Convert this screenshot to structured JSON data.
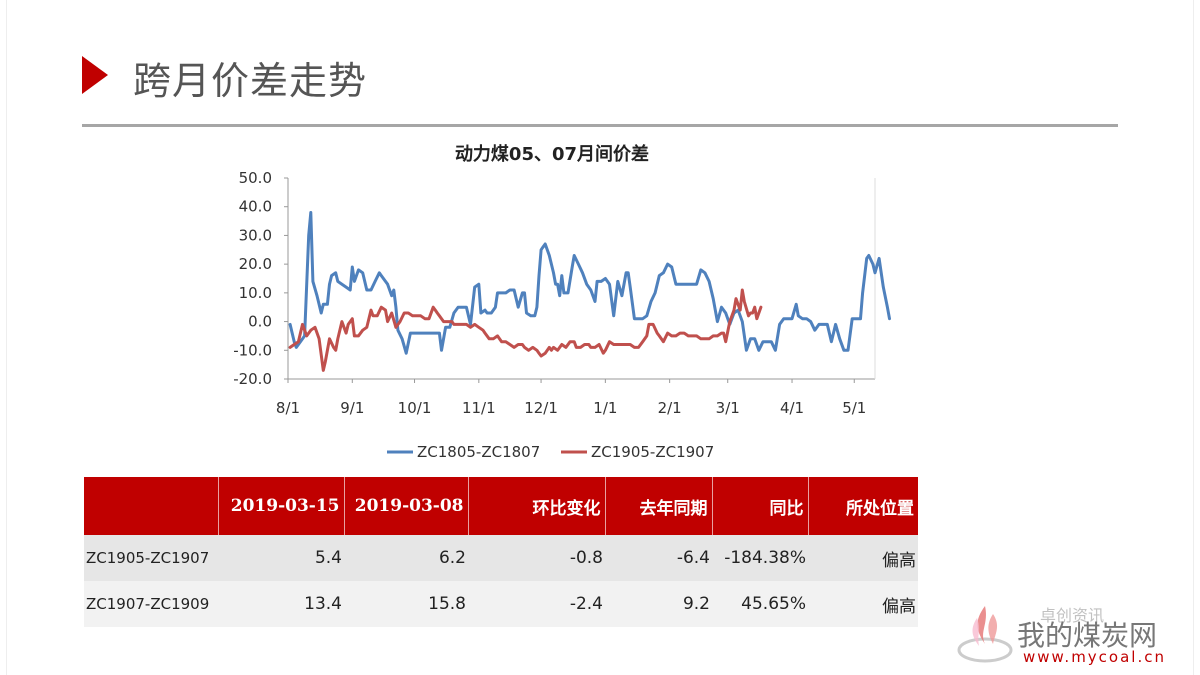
{
  "page": {
    "title": "跨月价差走势"
  },
  "chart_data": {
    "type": "line",
    "title": "动力煤05、07月间价差",
    "xlabel": "",
    "ylabel": "",
    "ylim": [
      -20,
      50
    ],
    "yticks": [
      "50.0",
      "40.0",
      "30.0",
      "20.0",
      "10.0",
      "0.0",
      "-10.0",
      "-20.0"
    ],
    "x_ticks": [
      "8/1",
      "9/1",
      "10/1",
      "11/1",
      "12/1",
      "1/1",
      "2/1",
      "3/1",
      "4/1",
      "5/1"
    ],
    "x_domain": [
      0,
      283
    ],
    "x_tick_days": [
      0,
      31,
      61,
      92,
      122,
      153,
      184,
      212,
      243,
      273
    ],
    "grid": false,
    "legend_position": "bottom",
    "series": [
      {
        "name": "ZC1805-ZC1807",
        "color": "#4f81bd",
        "points": [
          [
            1,
            -1
          ],
          [
            3,
            -7
          ],
          [
            4,
            -9
          ],
          [
            6,
            -7
          ],
          [
            8,
            -5
          ],
          [
            10,
            30
          ],
          [
            11,
            38
          ],
          [
            12,
            14
          ],
          [
            14,
            9
          ],
          [
            16,
            3
          ],
          [
            17,
            6
          ],
          [
            19,
            6
          ],
          [
            20,
            13
          ],
          [
            21,
            16
          ],
          [
            23,
            17
          ],
          [
            24,
            14
          ],
          [
            26,
            13
          ],
          [
            28,
            12
          ],
          [
            30,
            11
          ],
          [
            31,
            19
          ],
          [
            32,
            14
          ],
          [
            34,
            18
          ],
          [
            36,
            17
          ],
          [
            38,
            11
          ],
          [
            40,
            11
          ],
          [
            42,
            14
          ],
          [
            44,
            17
          ],
          [
            45,
            16
          ],
          [
            47,
            14
          ],
          [
            48,
            13
          ],
          [
            50,
            9
          ],
          [
            51,
            11
          ],
          [
            52,
            5
          ],
          [
            53,
            -3
          ],
          [
            55,
            -6
          ],
          [
            57,
            -11
          ],
          [
            59,
            -4
          ],
          [
            61,
            -4
          ],
          [
            63,
            -4
          ],
          [
            65,
            -4
          ],
          [
            67,
            -4
          ],
          [
            69,
            -4
          ],
          [
            71,
            -4
          ],
          [
            73,
            -4
          ],
          [
            74,
            -10
          ],
          [
            76,
            -2
          ],
          [
            78,
            -2
          ],
          [
            80,
            3
          ],
          [
            82,
            5
          ],
          [
            84,
            5
          ],
          [
            86,
            5
          ],
          [
            88,
            -1
          ],
          [
            90,
            12
          ],
          [
            92,
            13
          ],
          [
            93,
            3
          ],
          [
            95,
            4
          ],
          [
            96,
            3
          ],
          [
            98,
            3
          ],
          [
            100,
            5
          ],
          [
            101,
            10
          ],
          [
            103,
            10
          ],
          [
            105,
            10
          ],
          [
            107,
            11
          ],
          [
            108,
            11
          ],
          [
            109,
            11
          ],
          [
            111,
            5
          ],
          [
            113,
            10
          ],
          [
            114,
            10
          ],
          [
            115,
            3
          ],
          [
            117,
            2
          ],
          [
            119,
            2
          ],
          [
            120,
            5
          ],
          [
            121,
            16
          ],
          [
            122,
            25
          ],
          [
            123,
            26
          ],
          [
            124,
            27
          ],
          [
            126,
            23
          ],
          [
            128,
            17
          ],
          [
            129,
            13
          ],
          [
            130,
            13
          ],
          [
            131,
            9
          ],
          [
            132,
            16
          ],
          [
            133,
            10
          ],
          [
            135,
            10
          ],
          [
            137,
            19
          ],
          [
            138,
            23
          ],
          [
            140,
            20
          ],
          [
            142,
            17
          ],
          [
            144,
            13
          ],
          [
            146,
            11
          ],
          [
            148,
            7
          ],
          [
            149,
            14
          ],
          [
            151,
            14
          ],
          [
            153,
            15
          ],
          [
            155,
            13
          ],
          [
            157,
            2
          ],
          [
            159,
            14
          ],
          [
            161,
            9
          ],
          [
            163,
            17
          ],
          [
            164,
            17
          ],
          [
            165,
            12
          ],
          [
            167,
            1
          ],
          [
            169,
            1
          ],
          [
            171,
            1
          ],
          [
            173,
            2
          ],
          [
            175,
            7
          ],
          [
            177,
            10
          ],
          [
            179,
            16
          ],
          [
            181,
            17
          ],
          [
            183,
            20
          ],
          [
            185,
            19
          ],
          [
            187,
            13
          ],
          [
            189,
            13
          ],
          [
            191,
            13
          ],
          [
            193,
            13
          ],
          [
            195,
            13
          ],
          [
            197,
            13
          ],
          [
            199,
            18
          ],
          [
            201,
            17
          ],
          [
            203,
            14
          ],
          [
            205,
            8
          ],
          [
            207,
            0
          ],
          [
            209,
            5
          ],
          [
            211,
            3
          ],
          [
            213,
            -1
          ],
          [
            215,
            3
          ],
          [
            217,
            4
          ],
          [
            219,
            0
          ],
          [
            221,
            -10
          ],
          [
            223,
            -6
          ],
          [
            225,
            -6
          ],
          [
            227,
            -10
          ],
          [
            229,
            -7
          ],
          [
            231,
            -7
          ],
          [
            233,
            -7
          ],
          [
            235,
            -10
          ],
          [
            237,
            -1
          ],
          [
            239,
            1
          ],
          [
            241,
            1
          ],
          [
            243,
            1
          ],
          [
            245,
            6
          ],
          [
            246,
            2
          ],
          [
            248,
            1
          ],
          [
            250,
            1
          ],
          [
            252,
            0
          ],
          [
            254,
            -3
          ],
          [
            256,
            -1
          ],
          [
            258,
            -1
          ],
          [
            260,
            -1
          ],
          [
            262,
            -7
          ],
          [
            264,
            -1
          ],
          [
            266,
            -6
          ],
          [
            268,
            -10
          ],
          [
            270,
            -10
          ],
          [
            272,
            1
          ],
          [
            274,
            1
          ],
          [
            276,
            1
          ],
          [
            277,
            10
          ],
          [
            279,
            22
          ],
          [
            280,
            23
          ],
          [
            282,
            20
          ],
          [
            283,
            17
          ],
          [
            285,
            22
          ],
          [
            287,
            12
          ],
          [
            289,
            5
          ],
          [
            290,
            1
          ]
        ]
      },
      {
        "name": "ZC1905-ZC1907",
        "color": "#c0504d",
        "points": [
          [
            1,
            -9
          ],
          [
            3,
            -8
          ],
          [
            5,
            -7
          ],
          [
            7,
            -1
          ],
          [
            9,
            -5
          ],
          [
            11,
            -3
          ],
          [
            13,
            -2
          ],
          [
            15,
            -6
          ],
          [
            17,
            -17
          ],
          [
            18,
            -14
          ],
          [
            20,
            -6
          ],
          [
            22,
            -9
          ],
          [
            23,
            -10
          ],
          [
            24,
            -6
          ],
          [
            26,
            0
          ],
          [
            27,
            -2
          ],
          [
            28,
            -4
          ],
          [
            29,
            -1
          ],
          [
            31,
            1
          ],
          [
            32,
            -5
          ],
          [
            34,
            -5
          ],
          [
            36,
            -3
          ],
          [
            38,
            -2
          ],
          [
            40,
            4
          ],
          [
            41,
            2
          ],
          [
            43,
            2
          ],
          [
            45,
            5
          ],
          [
            47,
            4
          ],
          [
            48,
            0
          ],
          [
            50,
            3
          ],
          [
            52,
            -2
          ],
          [
            54,
            0
          ],
          [
            56,
            3
          ],
          [
            58,
            3
          ],
          [
            60,
            2
          ],
          [
            62,
            2
          ],
          [
            64,
            2
          ],
          [
            66,
            1
          ],
          [
            68,
            1
          ],
          [
            70,
            5
          ],
          [
            71,
            4
          ],
          [
            72,
            3
          ],
          [
            73,
            2
          ],
          [
            75,
            0
          ],
          [
            77,
            0
          ],
          [
            79,
            0
          ],
          [
            80,
            -1
          ],
          [
            82,
            -1
          ],
          [
            84,
            -1
          ],
          [
            86,
            -1
          ],
          [
            88,
            -2
          ],
          [
            90,
            -1
          ],
          [
            92,
            -2
          ],
          [
            94,
            -3
          ],
          [
            95,
            -4
          ],
          [
            97,
            -6
          ],
          [
            99,
            -6
          ],
          [
            101,
            -5
          ],
          [
            103,
            -7
          ],
          [
            105,
            -7
          ],
          [
            107,
            -8
          ],
          [
            109,
            -9
          ],
          [
            111,
            -8
          ],
          [
            113,
            -8
          ],
          [
            114,
            -9
          ],
          [
            116,
            -10
          ],
          [
            118,
            -9
          ],
          [
            120,
            -10
          ],
          [
            121,
            -11
          ],
          [
            122,
            -12
          ],
          [
            124,
            -11
          ],
          [
            126,
            -9
          ],
          [
            127,
            -10
          ],
          [
            128,
            -9
          ],
          [
            130,
            -10
          ],
          [
            132,
            -8
          ],
          [
            134,
            -9
          ],
          [
            136,
            -7
          ],
          [
            138,
            -7
          ],
          [
            139,
            -9
          ],
          [
            141,
            -9
          ],
          [
            143,
            -8
          ],
          [
            145,
            -8
          ],
          [
            146,
            -9
          ],
          [
            148,
            -9
          ],
          [
            150,
            -8
          ],
          [
            152,
            -11
          ],
          [
            153,
            -10
          ],
          [
            155,
            -7
          ],
          [
            157,
            -8
          ],
          [
            159,
            -8
          ],
          [
            161,
            -8
          ],
          [
            163,
            -8
          ],
          [
            165,
            -8
          ],
          [
            167,
            -9
          ],
          [
            169,
            -9
          ],
          [
            171,
            -7
          ],
          [
            173,
            -5
          ],
          [
            174,
            -1
          ],
          [
            176,
            -1
          ],
          [
            178,
            -4
          ],
          [
            179,
            -5
          ],
          [
            181,
            -7
          ],
          [
            183,
            -4
          ],
          [
            185,
            -5
          ],
          [
            187,
            -5
          ],
          [
            189,
            -4
          ],
          [
            191,
            -4
          ],
          [
            193,
            -5
          ],
          [
            195,
            -5
          ],
          [
            197,
            -5
          ],
          [
            199,
            -6
          ],
          [
            201,
            -6
          ],
          [
            203,
            -6
          ],
          [
            205,
            -5
          ],
          [
            207,
            -5
          ],
          [
            209,
            -4
          ],
          [
            210,
            -4
          ],
          [
            211,
            -7
          ],
          [
            213,
            0
          ],
          [
            215,
            4
          ],
          [
            216,
            8
          ],
          [
            218,
            4
          ],
          [
            219,
            11
          ],
          [
            220,
            7
          ],
          [
            222,
            2
          ],
          [
            223,
            3
          ],
          [
            224,
            3
          ],
          [
            225,
            5
          ],
          [
            226,
            1
          ],
          [
            228,
            5
          ]
        ]
      }
    ]
  },
  "table": {
    "headers": [
      "",
      "2019-03-15",
      "2019-03-08",
      "环比变化",
      "去年同期",
      "同比",
      "所处位置"
    ],
    "rows": [
      [
        "ZC1905-ZC1907",
        "5.4",
        "6.2",
        "-0.8",
        "-6.4",
        "-184.38%",
        "偏高"
      ],
      [
        "ZC1907-ZC1909",
        "13.4",
        "15.8",
        "-2.4",
        "9.2",
        "45.65%",
        "偏高"
      ]
    ]
  },
  "watermark": {
    "brand": "我的煤炭网",
    "url": "www.mycoal.cn",
    "faint": "卓创资讯"
  },
  "colors": {
    "accent": "#c00000",
    "series1": "#4f81bd",
    "series2": "#c0504d"
  }
}
